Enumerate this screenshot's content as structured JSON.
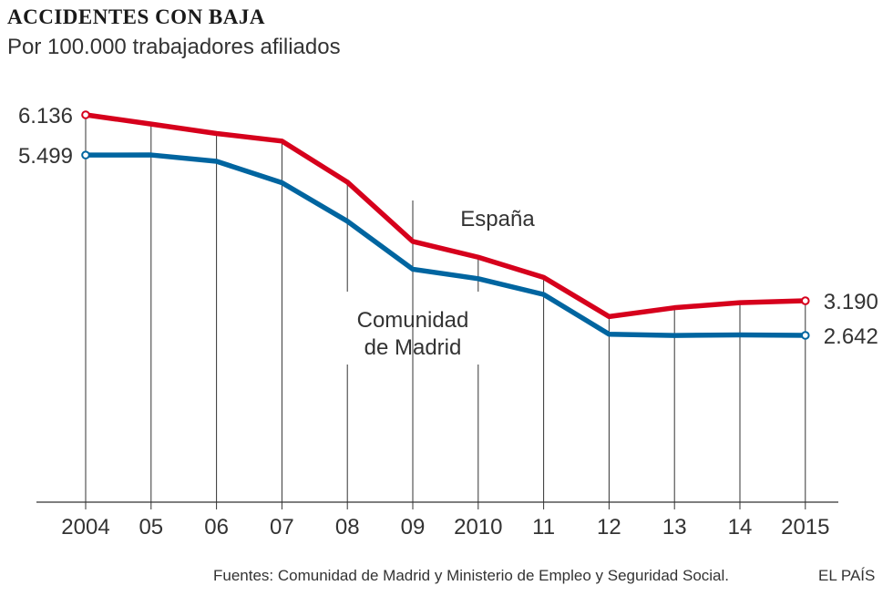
{
  "header": {
    "title": "ACCIDENTES CON BAJA",
    "subtitle": "Por 100.000 trabajadores afiliados"
  },
  "footer": {
    "source": "Fuentes: Comunidad de Madrid y Ministerio de Empleo y Seguridad Social.",
    "brand": "EL PAÍS"
  },
  "chart_data": {
    "type": "line",
    "title": "ACCIDENTES CON BAJA",
    "subtitle": "Por 100.000 trabajadores afiliados",
    "xlabel": "",
    "ylabel": "",
    "x": [
      2004,
      2005,
      2006,
      2007,
      2008,
      2009,
      2010,
      2011,
      2012,
      2013,
      2014,
      2015
    ],
    "tick_labels": [
      "2004",
      "05",
      "06",
      "07",
      "08",
      "09",
      "2010",
      "11",
      "12",
      "13",
      "14",
      "2015"
    ],
    "ylim": [
      0,
      6136
    ],
    "grid": "vertical",
    "series": [
      {
        "name": "España",
        "label": "España",
        "color": "#d6001c",
        "values": [
          6136,
          5990,
          5840,
          5720,
          5070,
          4130,
          3880,
          3560,
          2940,
          3080,
          3160,
          3190
        ],
        "start_label": "6.136",
        "end_label": "3.190"
      },
      {
        "name": "Comunidad de Madrid",
        "label_lines": [
          "Comunidad",
          "de Madrid"
        ],
        "color": "#0065a0",
        "values": [
          5499,
          5500,
          5400,
          5060,
          4450,
          3690,
          3540,
          3290,
          2660,
          2640,
          2650,
          2642
        ],
        "start_label": "5.499",
        "end_label": "2.642"
      }
    ]
  }
}
